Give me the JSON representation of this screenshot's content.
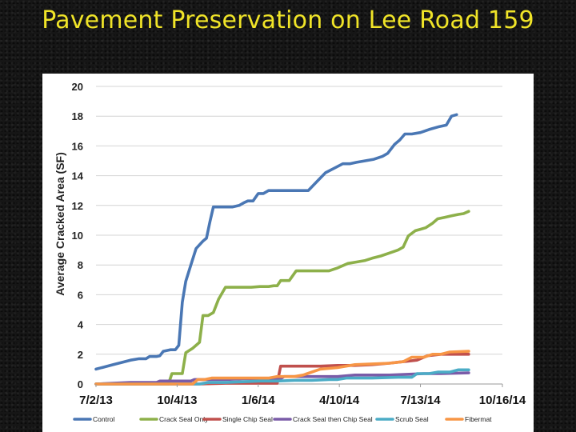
{
  "slide": {
    "title": "Pavement Preservation on Lee Road 159"
  },
  "chart_data": {
    "type": "line",
    "title": "",
    "xlabel": "",
    "ylabel": "Average Cracked Area (SF)",
    "ylim": [
      0,
      20
    ],
    "yticks": [
      0,
      2,
      4,
      6,
      8,
      10,
      12,
      14,
      16,
      18,
      20
    ],
    "x_unit": "days since 7/2/13",
    "xlim": [
      0,
      471
    ],
    "xticks": [
      {
        "label": "7/2/13",
        "day": 0
      },
      {
        "label": "10/4/13",
        "day": 94
      },
      {
        "label": "1/6/14",
        "day": 188
      },
      {
        "label": "4/10/14",
        "day": 282
      },
      {
        "label": "7/13/14",
        "day": 376
      },
      {
        "label": "10/16/14",
        "day": 471
      }
    ],
    "grid": "horizontal",
    "legend_position": "bottom",
    "series": [
      {
        "name": "Control",
        "color": "#4a77b4",
        "points": [
          [
            0,
            1.0
          ],
          [
            10,
            1.15
          ],
          [
            20,
            1.3
          ],
          [
            30,
            1.45
          ],
          [
            40,
            1.6
          ],
          [
            50,
            1.7
          ],
          [
            58,
            1.7
          ],
          [
            62,
            1.85
          ],
          [
            70,
            1.85
          ],
          [
            74,
            1.9
          ],
          [
            78,
            2.2
          ],
          [
            86,
            2.3
          ],
          [
            92,
            2.3
          ],
          [
            96,
            2.6
          ],
          [
            100,
            5.5
          ],
          [
            104,
            6.9
          ],
          [
            110,
            8.0
          ],
          [
            116,
            9.1
          ],
          [
            124,
            9.6
          ],
          [
            128,
            9.8
          ],
          [
            132,
            10.9
          ],
          [
            136,
            11.9
          ],
          [
            150,
            11.9
          ],
          [
            158,
            11.9
          ],
          [
            166,
            12.0
          ],
          [
            172,
            12.2
          ],
          [
            176,
            12.3
          ],
          [
            182,
            12.3
          ],
          [
            188,
            12.8
          ],
          [
            194,
            12.8
          ],
          [
            200,
            13.0
          ],
          [
            220,
            13.0
          ],
          [
            238,
            13.0
          ],
          [
            246,
            13.0
          ],
          [
            256,
            13.6
          ],
          [
            266,
            14.2
          ],
          [
            276,
            14.5
          ],
          [
            286,
            14.8
          ],
          [
            294,
            14.8
          ],
          [
            302,
            14.9
          ],
          [
            312,
            15.0
          ],
          [
            322,
            15.1
          ],
          [
            332,
            15.3
          ],
          [
            338,
            15.5
          ],
          [
            346,
            16.1
          ],
          [
            352,
            16.4
          ],
          [
            358,
            16.8
          ],
          [
            366,
            16.8
          ],
          [
            376,
            16.9
          ],
          [
            386,
            17.1
          ],
          [
            398,
            17.3
          ],
          [
            406,
            17.4
          ],
          [
            412,
            18.0
          ],
          [
            418,
            18.1
          ]
        ]
      },
      {
        "name": "Crack Seal Only",
        "color": "#8db04a",
        "points": [
          [
            0,
            0.0
          ],
          [
            60,
            0.0
          ],
          [
            84,
            0.0
          ],
          [
            88,
            0.7
          ],
          [
            96,
            0.7
          ],
          [
            100,
            0.7
          ],
          [
            104,
            2.1
          ],
          [
            112,
            2.4
          ],
          [
            120,
            2.8
          ],
          [
            124,
            4.6
          ],
          [
            130,
            4.6
          ],
          [
            136,
            4.8
          ],
          [
            142,
            5.7
          ],
          [
            150,
            6.5
          ],
          [
            160,
            6.5
          ],
          [
            180,
            6.5
          ],
          [
            190,
            6.55
          ],
          [
            200,
            6.55
          ],
          [
            206,
            6.6
          ],
          [
            210,
            6.6
          ],
          [
            214,
            6.95
          ],
          [
            224,
            6.95
          ],
          [
            232,
            7.6
          ],
          [
            240,
            7.6
          ],
          [
            260,
            7.6
          ],
          [
            270,
            7.6
          ],
          [
            280,
            7.8
          ],
          [
            292,
            8.1
          ],
          [
            302,
            8.2
          ],
          [
            312,
            8.3
          ],
          [
            320,
            8.45
          ],
          [
            330,
            8.6
          ],
          [
            340,
            8.8
          ],
          [
            350,
            9.0
          ],
          [
            356,
            9.2
          ],
          [
            362,
            9.95
          ],
          [
            370,
            10.3
          ],
          [
            376,
            10.4
          ],
          [
            382,
            10.5
          ],
          [
            390,
            10.8
          ],
          [
            396,
            11.1
          ],
          [
            404,
            11.2
          ],
          [
            412,
            11.3
          ],
          [
            420,
            11.4
          ],
          [
            426,
            11.45
          ],
          [
            432,
            11.6
          ]
        ]
      },
      {
        "name": "Single Chip Seal",
        "color": "#c0504d",
        "points": [
          [
            0,
            0.0
          ],
          [
            60,
            0.0
          ],
          [
            100,
            0.0
          ],
          [
            120,
            0.0
          ],
          [
            150,
            0.05
          ],
          [
            200,
            0.05
          ],
          [
            210,
            0.05
          ],
          [
            214,
            1.2
          ],
          [
            240,
            1.2
          ],
          [
            260,
            1.2
          ],
          [
            280,
            1.25
          ],
          [
            300,
            1.25
          ],
          [
            320,
            1.3
          ],
          [
            340,
            1.4
          ],
          [
            356,
            1.5
          ],
          [
            372,
            1.6
          ],
          [
            384,
            1.9
          ],
          [
            400,
            2.0
          ],
          [
            432,
            2.0
          ]
        ]
      },
      {
        "name": "Crack Seal then Chip Seal",
        "color": "#7a5ca8",
        "points": [
          [
            0,
            0.0
          ],
          [
            40,
            0.1
          ],
          [
            70,
            0.1
          ],
          [
            74,
            0.2
          ],
          [
            100,
            0.2
          ],
          [
            110,
            0.2
          ],
          [
            114,
            0.3
          ],
          [
            130,
            0.3
          ],
          [
            150,
            0.3
          ],
          [
            170,
            0.35
          ],
          [
            200,
            0.35
          ],
          [
            214,
            0.35
          ],
          [
            218,
            0.5
          ],
          [
            240,
            0.5
          ],
          [
            260,
            0.5
          ],
          [
            280,
            0.5
          ],
          [
            300,
            0.6
          ],
          [
            320,
            0.6
          ],
          [
            340,
            0.6
          ],
          [
            360,
            0.65
          ],
          [
            380,
            0.7
          ],
          [
            400,
            0.7
          ],
          [
            432,
            0.75
          ]
        ]
      },
      {
        "name": "Scrub Seal",
        "color": "#4bacc6",
        "points": [
          [
            0,
            0.0
          ],
          [
            120,
            0.0
          ],
          [
            130,
            0.1
          ],
          [
            150,
            0.1
          ],
          [
            170,
            0.15
          ],
          [
            190,
            0.2
          ],
          [
            210,
            0.2
          ],
          [
            230,
            0.25
          ],
          [
            250,
            0.25
          ],
          [
            270,
            0.3
          ],
          [
            280,
            0.3
          ],
          [
            290,
            0.4
          ],
          [
            320,
            0.4
          ],
          [
            350,
            0.45
          ],
          [
            366,
            0.45
          ],
          [
            372,
            0.7
          ],
          [
            386,
            0.7
          ],
          [
            396,
            0.8
          ],
          [
            410,
            0.8
          ],
          [
            420,
            0.95
          ],
          [
            432,
            0.95
          ]
        ]
      },
      {
        "name": "Fibermat",
        "color": "#f79646",
        "points": [
          [
            0,
            0.0
          ],
          [
            100,
            0.0
          ],
          [
            112,
            0.0
          ],
          [
            118,
            0.3
          ],
          [
            126,
            0.3
          ],
          [
            134,
            0.4
          ],
          [
            150,
            0.4
          ],
          [
            180,
            0.4
          ],
          [
            200,
            0.4
          ],
          [
            210,
            0.5
          ],
          [
            230,
            0.5
          ],
          [
            240,
            0.6
          ],
          [
            260,
            1.0
          ],
          [
            270,
            1.05
          ],
          [
            280,
            1.1
          ],
          [
            300,
            1.3
          ],
          [
            320,
            1.35
          ],
          [
            340,
            1.4
          ],
          [
            356,
            1.5
          ],
          [
            366,
            1.8
          ],
          [
            380,
            1.8
          ],
          [
            390,
            2.0
          ],
          [
            400,
            2.0
          ],
          [
            410,
            2.15
          ],
          [
            432,
            2.2
          ]
        ]
      }
    ]
  }
}
